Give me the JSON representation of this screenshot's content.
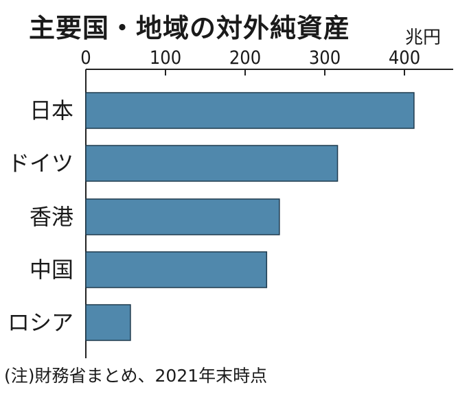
{
  "chart_data": {
    "type": "bar",
    "orientation": "horizontal",
    "title": "主要国・地域の対外純資産",
    "unit": "兆円",
    "categories": [
      "日本",
      "ドイツ",
      "香港",
      "中国",
      "ロシア"
    ],
    "values": [
      412,
      316,
      243,
      227,
      56
    ],
    "xlim": [
      0,
      460
    ],
    "xticks": [
      0,
      100,
      200,
      300,
      400
    ],
    "grid": false,
    "bar_color": "#5088AC",
    "note": "(注)財務省まとめ、2021年末時点"
  }
}
